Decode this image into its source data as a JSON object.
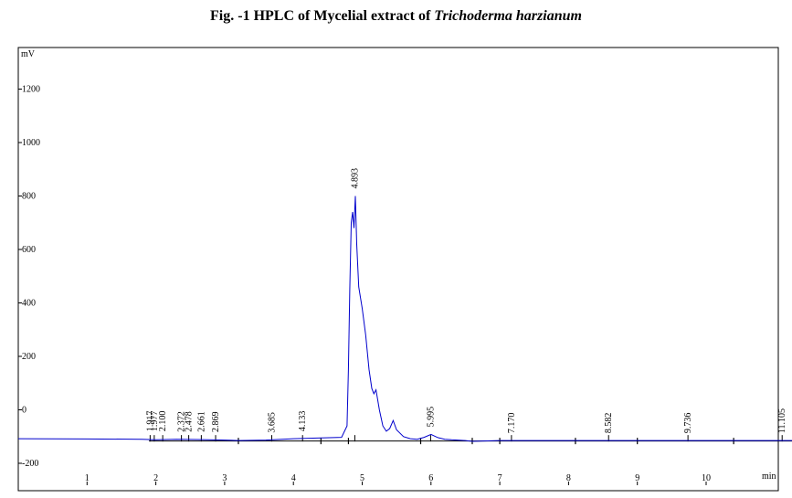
{
  "figure": {
    "title_prefix": "Fig. -1 HPLC of Mycelial extract of ",
    "title_organism": "Trichoderma harzianum"
  },
  "chart_data": {
    "type": "line",
    "xlabel": "min",
    "ylabel": "mV",
    "xlim": [
      0,
      11.3
    ],
    "ylim": [
      -230,
      1390
    ],
    "x_ticks": [
      1,
      2,
      3,
      4,
      5,
      6,
      7,
      8,
      9,
      10
    ],
    "y_ticks": [
      -200,
      0,
      200,
      400,
      600,
      800,
      1000,
      1200
    ],
    "grid": false,
    "line_color": "#0000cc",
    "series": [
      {
        "x": [
          0.0,
          1.0,
          1.8,
          2.0,
          2.3,
          2.6,
          3.0,
          3.2,
          3.6,
          4.0,
          4.4,
          4.7,
          4.78,
          4.8,
          4.82,
          4.84,
          4.86,
          4.88,
          4.9,
          4.92,
          4.95,
          5.0,
          5.05,
          5.1,
          5.14,
          5.17,
          5.2,
          5.25,
          5.3,
          5.35,
          5.4,
          5.45,
          5.5,
          5.6,
          5.7,
          5.8,
          5.9,
          6.0,
          6.05,
          6.1,
          6.2,
          6.3,
          6.5,
          6.6,
          7.0,
          8.0,
          9.0,
          10.0,
          11.3
        ],
        "y": [
          -108,
          -109,
          -110,
          -112,
          -110,
          -111,
          -113,
          -115,
          -113,
          -108,
          -105,
          -103,
          -60,
          150,
          450,
          700,
          740,
          680,
          800,
          620,
          460,
          380,
          280,
          150,
          80,
          60,
          75,
          0,
          -60,
          -80,
          -70,
          -40,
          -75,
          -100,
          -108,
          -110,
          -103,
          -92,
          -98,
          -104,
          -110,
          -112,
          -115,
          -118,
          -115,
          -115,
          -115,
          -115,
          -115
        ]
      }
    ],
    "peak_labels": [
      "1.917",
      "1.977",
      "2.100",
      "2.372",
      "2.478",
      "2.661",
      "2.869",
      "3.685",
      "4.133",
      "4.893",
      "5.995",
      "7.170",
      "8.582",
      "9.736",
      "11.105"
    ],
    "peak_times": [
      1.917,
      1.977,
      2.1,
      2.372,
      2.478,
      2.661,
      2.869,
      3.685,
      4.133,
      4.893,
      5.995,
      7.17,
      8.582,
      9.736,
      11.105
    ],
    "peak_heights": [
      -108,
      -108,
      -108,
      -110,
      -110,
      -110,
      -111,
      -113,
      -108,
      800,
      -92,
      -115,
      -115,
      -115,
      -115
    ],
    "baseline_segments": [
      [
        1.9,
        3.2
      ],
      [
        3.2,
        4.4
      ],
      [
        4.4,
        4.8
      ],
      [
        4.8,
        5.85
      ],
      [
        5.85,
        6.6
      ],
      [
        6.6,
        7.0
      ],
      [
        7.0,
        8.1
      ],
      [
        8.1,
        9.0
      ],
      [
        9.0,
        10.4
      ],
      [
        10.4,
        11.3
      ]
    ]
  }
}
